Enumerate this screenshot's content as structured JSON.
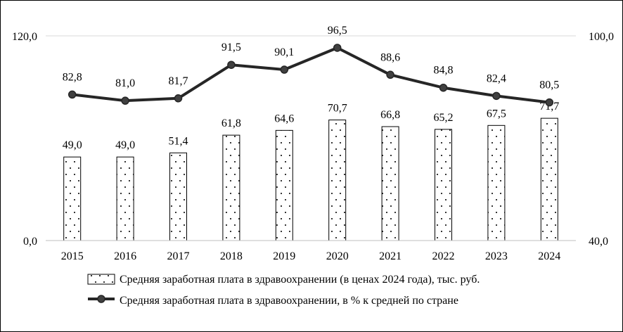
{
  "chart_data": {
    "type": "bar",
    "categories": [
      "2015",
      "2016",
      "2017",
      "2018",
      "2019",
      "2020",
      "2021",
      "2022",
      "2023",
      "2024"
    ],
    "series": [
      {
        "name": "Средняя заработная плата в здравоохранении (в ценах 2024 года), тыс. руб.",
        "type": "bar",
        "axis": "left",
        "values": [
          49.0,
          49.0,
          51.4,
          61.8,
          64.6,
          70.7,
          66.8,
          65.2,
          67.5,
          71.7
        ],
        "labels": [
          "49,0",
          "49,0",
          "51,4",
          "61,8",
          "64,6",
          "70,7",
          "66,8",
          "65,2",
          "67,5",
          "71,7"
        ]
      },
      {
        "name": "Средняя заработная плата в здравоохранении, в % к средней по стране",
        "type": "line",
        "axis": "right",
        "values": [
          82.8,
          81.0,
          81.7,
          91.5,
          90.1,
          96.5,
          88.6,
          84.8,
          82.4,
          80.5
        ],
        "labels": [
          "82,8",
          "81,0",
          "81,7",
          "91,5",
          "90,1",
          "96,5",
          "88,6",
          "84,8",
          "82,4",
          "80,5"
        ]
      }
    ],
    "y_left": {
      "ylim": [
        0,
        120
      ],
      "tick_labels": [
        "0,0",
        "120,0"
      ]
    },
    "y_right": {
      "ylim": [
        40,
        100
      ],
      "tick_labels": [
        "40,0",
        "100,0"
      ]
    },
    "grid": "top-only",
    "legend": "bottom",
    "colors": {
      "bar_fill": "#ffffff",
      "bar_stroke": "#000000",
      "bar_dots": "#000000",
      "line": "#262626",
      "marker": "#404040"
    }
  }
}
